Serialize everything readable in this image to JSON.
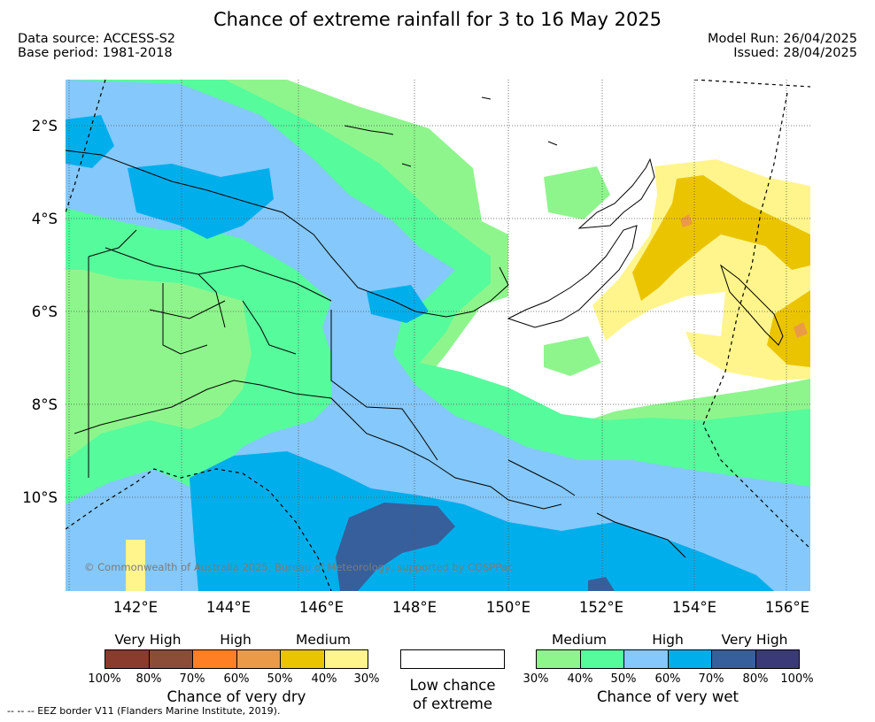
{
  "header": {
    "title": "Chance of extreme rainfall for 3 to 16 May 2025",
    "left_line1": "Data source: ACCESS-S2",
    "left_line2": "Base period: 1981-2018",
    "right_line1": "Model Run: 26/04/2025",
    "right_line2": "Issued: 28/04/2025"
  },
  "map": {
    "lat_labels": [
      "2°S",
      "4°S",
      "6°S",
      "8°S",
      "10°S"
    ],
    "lon_labels": [
      "142°E",
      "144°E",
      "146°E",
      "148°E",
      "150°E",
      "152°E",
      "154°E",
      "156°E"
    ],
    "copyright": "© Commonwealth of Australia 2025, Bureau of Meteorology, supported by COSPPac"
  },
  "legend": {
    "dry": {
      "levels": [
        "Very High",
        "High",
        "Medium"
      ],
      "colors": [
        "#8b3a2e",
        "#8b4c38",
        "#ff7f24",
        "#eb9a48",
        "#ebc400",
        "#fff58c"
      ],
      "ticks": [
        "100%",
        "80%",
        "70%",
        "60%",
        "50%",
        "40%",
        "30%"
      ],
      "caption": "Chance of very dry"
    },
    "low": {
      "line1": "Low chance",
      "line2": "of extreme",
      "color": "#ffffff"
    },
    "wet": {
      "levels": [
        "Medium",
        "High",
        "Very High"
      ],
      "colors": [
        "#8ef58c",
        "#56fb9c",
        "#85c8fb",
        "#00aeeb",
        "#375f9b",
        "#3a3a78"
      ],
      "ticks": [
        "30%",
        "40%",
        "50%",
        "60%",
        "70%",
        "80%",
        "100%"
      ],
      "caption": "Chance of very wet"
    }
  },
  "footer": {
    "eez_note": "--  --  -- EEZ border V11 (Flanders Marine Institute, 2019)."
  }
}
